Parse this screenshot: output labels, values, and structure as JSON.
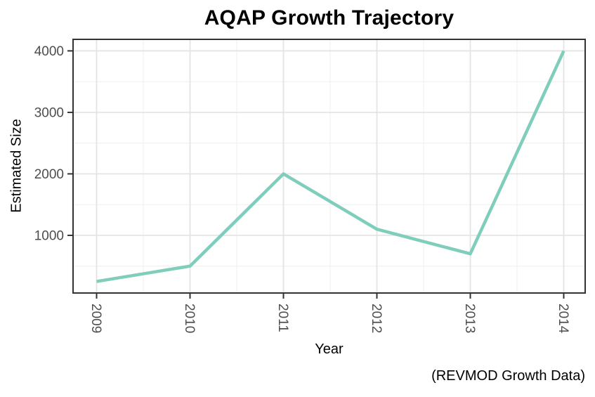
{
  "chart_data": {
    "type": "line",
    "title": "AQAP Growth Trajectory",
    "xlabel": "Year",
    "ylabel": "Estimated Size",
    "caption": "(REVMOD Growth Data)",
    "x": [
      2009,
      2010,
      2011,
      2012,
      2013,
      2014
    ],
    "values": [
      250,
      500,
      2000,
      1100,
      700,
      4000
    ],
    "x_tick_labels": [
      "2009",
      "2010",
      "2011",
      "2012",
      "2013",
      "2014"
    ],
    "y_ticks": [
      1000,
      2000,
      3000,
      4000
    ],
    "y_tick_labels": [
      "1000",
      "2000",
      "3000",
      "4000"
    ],
    "y_minor_ticks": [
      500,
      1500,
      2500,
      3500
    ],
    "xlim": [
      2009,
      2014
    ],
    "ylim": [
      62.5,
      4187.5
    ],
    "grid": "on",
    "legend": "none",
    "colors": {
      "line": "#7fcdbb",
      "panel_border": "#333333",
      "grid_major": "#e3e3e3",
      "grid_minor": "#f0f0f0",
      "tick_mark": "#333333",
      "tick_label": "#4d4d4d",
      "panel_background": "#ffffff"
    }
  }
}
